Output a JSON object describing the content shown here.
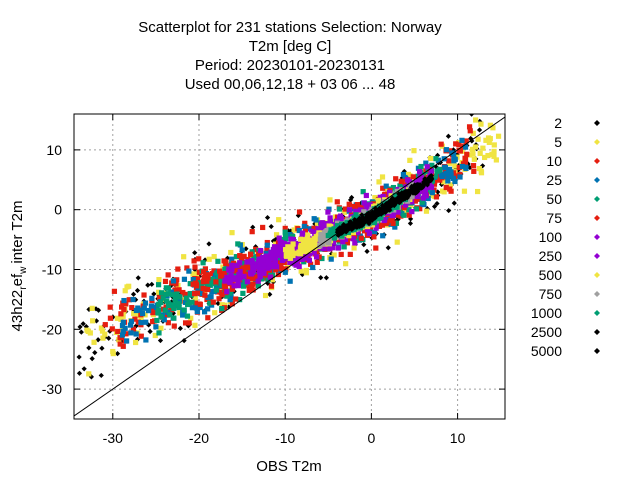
{
  "chart_data": {
    "type": "scatter",
    "title_lines": [
      "Scatterplot for  231 stations Selection: Norway",
      "T2m [deg C]",
      "Period: 20230101-20230131",
      "Used  00,06,12,18  + 03 06 ... 48"
    ],
    "xlabel": "OBS T2m",
    "ylabel": "43h22 ref_w inter T2m",
    "ylabel_parts": {
      "main": "43h22",
      "sub1": "r",
      "mid": "ef",
      "sub2": "w",
      "end": "inter T2m"
    },
    "xlim": [
      -34.5,
      15.5
    ],
    "ylim": [
      -35,
      16
    ],
    "xticks": [
      -30,
      -20,
      -10,
      0,
      10
    ],
    "yticks": [
      -30,
      -20,
      -10,
      0,
      10
    ],
    "xtick_labels": [
      "-30",
      "-20",
      "-10",
      "0",
      "10"
    ],
    "ytick_labels": [
      "-30",
      "-20",
      "-10",
      "0",
      "10"
    ],
    "grid": true,
    "diagonal": "y = x",
    "legend_position": "right outside",
    "legend": [
      {
        "label": "2",
        "color": "#000000"
      },
      {
        "label": "5",
        "color": "#f0e442"
      },
      {
        "label": "10",
        "color": "#e51e10"
      },
      {
        "label": "25",
        "color": "#0072b2"
      },
      {
        "label": "50",
        "color": "#009e73"
      },
      {
        "label": "75",
        "color": "#e51e10"
      },
      {
        "label": "100",
        "color": "#9400d3"
      },
      {
        "label": "250",
        "color": "#9400d3"
      },
      {
        "label": "500",
        "color": "#f0e442"
      },
      {
        "label": "750",
        "color": "#a0a0a0"
      },
      {
        "label": "1000",
        "color": "#009e73"
      },
      {
        "label": "2500",
        "color": "#000000"
      },
      {
        "label": "5000",
        "color": "#000000"
      }
    ],
    "density_bands": [
      {
        "min_count": 2,
        "color": "#000000",
        "x_range": [
          -34,
          13
        ],
        "spread": 4.5
      },
      {
        "min_count": 5,
        "color": "#f0e442",
        "x_range": [
          -33,
          15
        ],
        "spread": 4.0
      },
      {
        "min_count": 10,
        "color": "#e51e10",
        "x_range": [
          -31,
          12
        ],
        "spread": 3.5
      },
      {
        "min_count": 25,
        "color": "#0072b2",
        "x_range": [
          -29,
          11
        ],
        "spread": 3.0
      },
      {
        "min_count": 50,
        "color": "#009e73",
        "x_range": [
          -25,
          8
        ],
        "spread": 2.5
      },
      {
        "min_count": 75,
        "color": "#e51e10",
        "x_range": [
          -21,
          7
        ],
        "spread": 2.2
      },
      {
        "min_count": 100,
        "color": "#9400d3",
        "x_range": [
          -17,
          7
        ],
        "spread": 2.0
      },
      {
        "min_count": 250,
        "color": "#9400d3",
        "x_range": [
          -13,
          6
        ],
        "spread": 1.5
      },
      {
        "min_count": 500,
        "color": "#f0e442",
        "x_range": [
          -10,
          5
        ],
        "spread": 1.0
      },
      {
        "min_count": 750,
        "color": "#a0a0a0",
        "x_range": [
          -6,
          5
        ],
        "spread": 0.8
      },
      {
        "min_count": 1000,
        "color": "#009e73",
        "x_range": [
          -5,
          4
        ],
        "spread": 0.7
      },
      {
        "min_count": 2500,
        "color": "#000000",
        "x_range": [
          -4,
          7
        ],
        "spread": 0.6
      },
      {
        "min_count": 5000,
        "color": "#000000",
        "x_range": [
          -2,
          4
        ],
        "spread": 0.4
      }
    ]
  }
}
